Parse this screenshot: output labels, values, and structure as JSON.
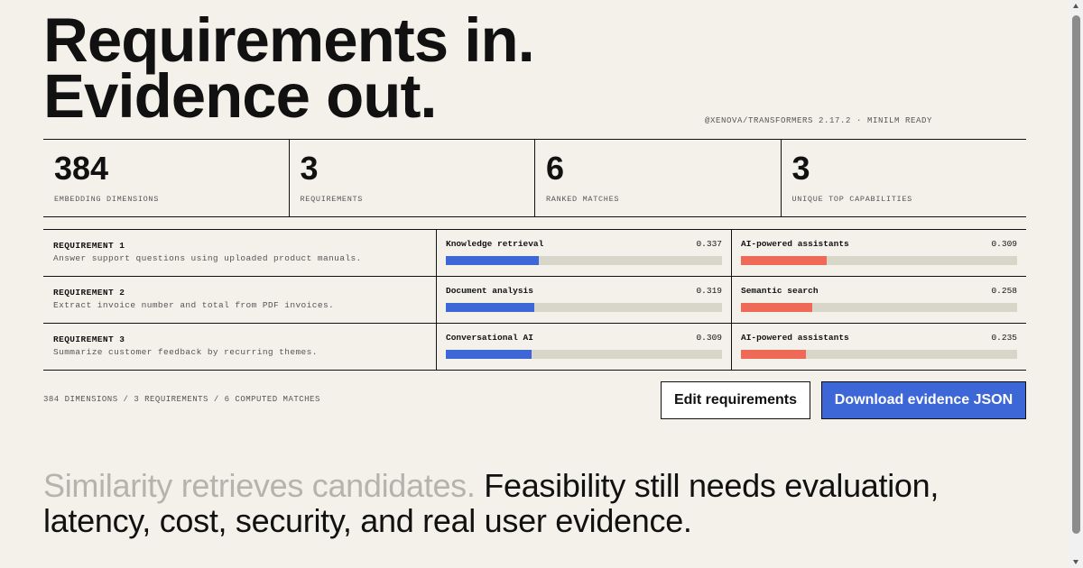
{
  "hero": {
    "line1": "Requirements in.",
    "line2": "Evidence out."
  },
  "model_status": "@XENOVA/TRANSFORMERS 2.17.2 · MINILM READY",
  "stats": [
    {
      "value": "384",
      "label": "EMBEDDING DIMENSIONS"
    },
    {
      "value": "3",
      "label": "REQUIREMENTS"
    },
    {
      "value": "6",
      "label": "RANKED MATCHES"
    },
    {
      "value": "3",
      "label": "UNIQUE TOP CAPABILITIES"
    }
  ],
  "requirements": [
    {
      "name": "REQUIREMENT 1",
      "description": "Answer support questions using uploaded product manuals.",
      "matches": [
        {
          "capability": "Knowledge retrieval",
          "score": "0.337",
          "bar_fraction": 0.337
        },
        {
          "capability": "AI-powered assistants",
          "score": "0.309",
          "bar_fraction": 0.309
        }
      ]
    },
    {
      "name": "REQUIREMENT 2",
      "description": "Extract invoice number and total from PDF invoices.",
      "matches": [
        {
          "capability": "Document analysis",
          "score": "0.319",
          "bar_fraction": 0.319
        },
        {
          "capability": "Semantic search",
          "score": "0.258",
          "bar_fraction": 0.258
        }
      ]
    },
    {
      "name": "REQUIREMENT 3",
      "description": "Summarize customer feedback by recurring themes.",
      "matches": [
        {
          "capability": "Conversational AI",
          "score": "0.309",
          "bar_fraction": 0.309
        },
        {
          "capability": "AI-powered assistants",
          "score": "0.235",
          "bar_fraction": 0.235
        }
      ]
    }
  ],
  "footer": {
    "summary": "384 DIMENSIONS / 3 REQUIREMENTS / 6 COMPUTED MATCHES",
    "edit_label": "Edit requirements",
    "download_label": "Download evidence JSON"
  },
  "tagline": {
    "muted": "Similarity retrieves candidates.",
    "strong": "Feasibility still needs evaluation, latency, cost, security, and real user evidence."
  },
  "colors": {
    "primary_bar": "#3d67d6",
    "secondary_bar": "#ee6a57",
    "accent_button": "#3d67d6",
    "background": "#f3f1ea"
  }
}
